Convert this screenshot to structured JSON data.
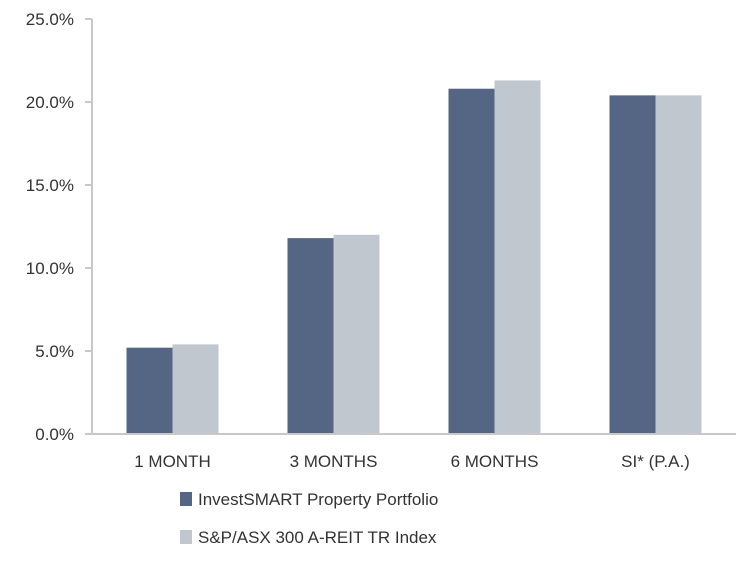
{
  "chart_data": {
    "type": "bar",
    "title": "",
    "xlabel": "",
    "ylabel": "",
    "categories": [
      "1 MONTH",
      "3 MONTHS",
      "6 MONTHS",
      "SI* (P.A.)"
    ],
    "series": [
      {
        "name": "InvestSMART Property Portfolio",
        "color": "#546684",
        "values": [
          5.2,
          11.8,
          20.8,
          20.4
        ]
      },
      {
        "name": "S&P/ASX 300 A-REIT TR Index",
        "color": "#c1c7cf",
        "values": [
          5.4,
          12.0,
          21.3,
          20.4
        ]
      }
    ],
    "ylim": [
      0,
      25
    ],
    "yticks": [
      0,
      5,
      10,
      15,
      20,
      25
    ],
    "ytick_labels": [
      "0.0%",
      "5.0%",
      "10.0%",
      "15.0%",
      "20.0%",
      "25.0%"
    ],
    "grid": false,
    "legend_position": "bottom-center"
  },
  "colors": {
    "axis": "#c8c8c8",
    "text": "#333333"
  }
}
